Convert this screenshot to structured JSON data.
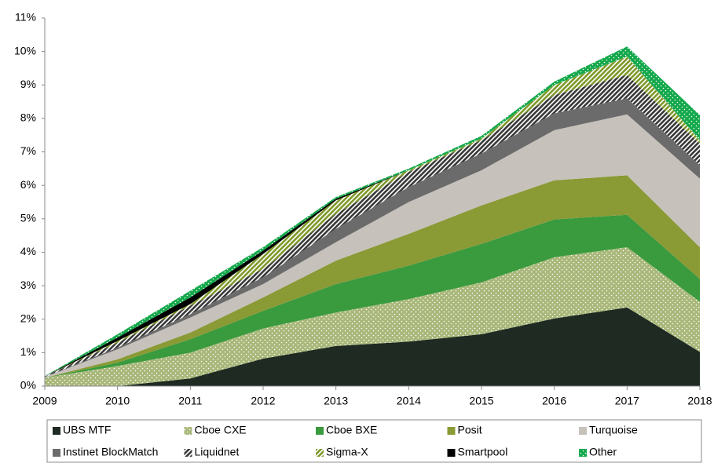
{
  "chart_data": {
    "type": "stacked_area",
    "x": [
      2009,
      2010,
      2011,
      2012,
      2013,
      2014,
      2015,
      2016,
      2017,
      2018
    ],
    "xlim": [
      2009,
      2018
    ],
    "xticks": [
      2009,
      2010,
      2011,
      2012,
      2013,
      2014,
      2015,
      2016,
      2017,
      2018
    ],
    "ylim": [
      0,
      11
    ],
    "yticks": [
      {
        "value": 0,
        "label": "0%"
      },
      {
        "value": 1,
        "label": "1%"
      },
      {
        "value": 2,
        "label": "2%"
      },
      {
        "value": 3,
        "label": "3%"
      },
      {
        "value": 4,
        "label": "4%"
      },
      {
        "value": 5,
        "label": "5%"
      },
      {
        "value": 6,
        "label": "6%"
      },
      {
        "value": 7,
        "label": "7%"
      },
      {
        "value": 8,
        "label": "8%"
      },
      {
        "value": 9,
        "label": "9%"
      },
      {
        "value": 10,
        "label": "10%"
      },
      {
        "value": 11,
        "label": "11%"
      }
    ],
    "legend": "bottom",
    "series": [
      {
        "name": "UBS MTF",
        "color": "#1e2a22",
        "pattern": "solid",
        "values": [
          0,
          0,
          0.23,
          0.82,
          1.2,
          1.33,
          1.55,
          2.02,
          2.35,
          1.02
        ]
      },
      {
        "name": "Cboe CXE",
        "color": "#a9b87a",
        "pattern": "dots",
        "values": [
          0.25,
          0.6,
          0.77,
          0.9,
          1.0,
          1.27,
          1.55,
          1.83,
          1.8,
          1.5
        ]
      },
      {
        "name": "Cboe BXE",
        "color": "#3a9a3e",
        "pattern": "solid",
        "values": [
          0,
          0.1,
          0.4,
          0.53,
          0.85,
          1.0,
          1.15,
          1.13,
          0.97,
          0.68
        ]
      },
      {
        "name": "Posit",
        "color": "#8a9a35",
        "pattern": "solid",
        "values": [
          0,
          0.1,
          0.2,
          0.4,
          0.7,
          0.95,
          1.15,
          1.17,
          1.18,
          0.95
        ]
      },
      {
        "name": "Turquoise",
        "color": "#c6c1bb",
        "pattern": "solid",
        "values": [
          0.02,
          0.3,
          0.45,
          0.4,
          0.55,
          0.95,
          1.05,
          1.5,
          1.82,
          2.05
        ]
      },
      {
        "name": "Instinet BlockMatch",
        "color": "#6b6b6b",
        "pattern": "solid",
        "values": [
          0,
          0.05,
          0.1,
          0.2,
          0.4,
          0.45,
          0.5,
          0.5,
          0.48,
          0.4
        ]
      },
      {
        "name": "Liquidnet",
        "color": "#3a3a3a",
        "pattern": "hatch",
        "values": [
          0.02,
          0.15,
          0.25,
          0.25,
          0.45,
          0.45,
          0.4,
          0.55,
          0.7,
          0.65
        ]
      },
      {
        "name": "Sigma-X",
        "color": "#7f9a2a",
        "pattern": "hatch",
        "values": [
          0,
          0.05,
          0.05,
          0.45,
          0.4,
          0.05,
          0.05,
          0.3,
          0.55,
          0.1
        ]
      },
      {
        "name": "Smartpool",
        "color": "#000000",
        "pattern": "solid",
        "values": [
          0,
          0.1,
          0.2,
          0.1,
          0.05,
          0,
          0,
          0,
          0,
          0
        ]
      },
      {
        "name": "Other",
        "color": "#13a84b",
        "pattern": "dots",
        "values": [
          0.01,
          0.1,
          0.2,
          0.1,
          0.05,
          0.05,
          0.08,
          0.1,
          0.3,
          0.75
        ]
      }
    ]
  }
}
